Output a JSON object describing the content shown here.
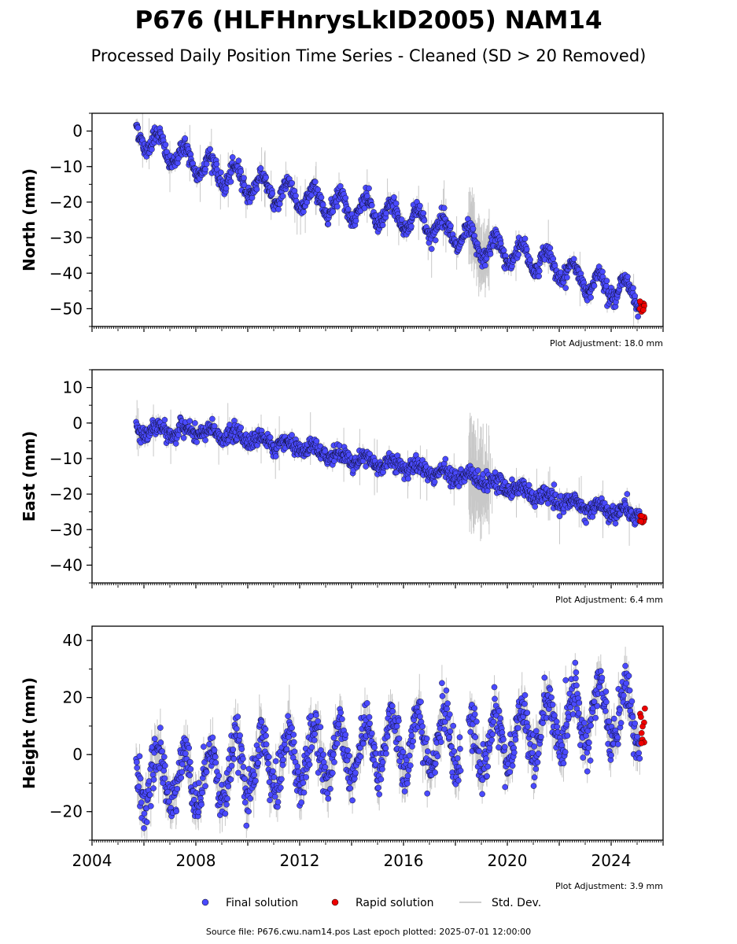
{
  "title": "P676 (HLFHnrysLkID2005) NAM14",
  "subtitle": "Processed Daily Position Time Series - Cleaned (SD > 20 Removed)",
  "footer": "Source file: P676.cwu.nam14.pos  Last epoch plotted: 2025-07-01 12:00:00",
  "legend": [
    {
      "label": "Final solution",
      "color": "#4a4aff"
    },
    {
      "label": "Rapid solution",
      "color": "#ee0000"
    },
    {
      "label": "Std. Dev.",
      "color": "#b0b0b0"
    }
  ],
  "colors": {
    "final": "#4a4aff",
    "rapid": "#ee0000",
    "stddev": "#9a9a9a"
  },
  "chart_data": [
    {
      "type": "scatter",
      "ylabel": "North (mm)",
      "note": "Plot Adjustment: 18.0 mm",
      "xlim": [
        2004,
        2026
      ],
      "ylim": [
        -55,
        5
      ],
      "yticks": [
        0,
        -10,
        -20,
        -30,
        -40,
        -50
      ],
      "ytick_labels": [
        "0",
        "−10",
        "−20",
        "−30",
        "−40",
        "−50"
      ],
      "show_x_labels": false,
      "final_trend": [
        [
          2005.7,
          0
        ],
        [
          2007,
          -6
        ],
        [
          2009,
          -12
        ],
        [
          2011,
          -17
        ],
        [
          2013,
          -20
        ],
        [
          2015,
          -23
        ],
        [
          2017,
          -26
        ],
        [
          2018.3,
          -30
        ],
        [
          2019,
          -33
        ],
        [
          2020,
          -34
        ],
        [
          2021.5,
          -37
        ],
        [
          2023,
          -42
        ],
        [
          2025.1,
          -46
        ]
      ],
      "seasonal_amplitude": 3.5,
      "scatter_sd": 1.2,
      "noisy_period": [
        2018.5,
        2019.3
      ],
      "noisy_sd": 9,
      "rapid_x": [
        2025.1,
        2025.3
      ],
      "rapid_y": [
        -51,
        -47.5
      ]
    },
    {
      "type": "scatter",
      "ylabel": "East (mm)",
      "note": "Plot Adjustment: 6.4 mm",
      "xlim": [
        2004,
        2026
      ],
      "ylim": [
        -45,
        15
      ],
      "yticks": [
        10,
        0,
        -10,
        -20,
        -30,
        -40
      ],
      "ytick_labels": [
        "10",
        "0",
        "−10",
        "−20",
        "−30",
        "−40"
      ],
      "show_x_labels": false,
      "final_trend": [
        [
          2005.7,
          -2
        ],
        [
          2008,
          -2.5
        ],
        [
          2010,
          -4
        ],
        [
          2012,
          -7
        ],
        [
          2014,
          -10
        ],
        [
          2016,
          -12
        ],
        [
          2018.2,
          -15
        ],
        [
          2019,
          -16
        ],
        [
          2020,
          -18
        ],
        [
          2022,
          -22
        ],
        [
          2025.1,
          -26
        ]
      ],
      "seasonal_amplitude": 1.2,
      "scatter_sd": 1.2,
      "noisy_period": [
        2018.5,
        2019.3
      ],
      "noisy_sd": 12,
      "rapid_x": [
        2025.1,
        2025.3
      ],
      "rapid_y": [
        -28,
        -26
      ]
    },
    {
      "type": "scatter",
      "ylabel": "Height (mm)",
      "note": "Plot Adjustment: 3.9 mm",
      "xlim": [
        2004,
        2026
      ],
      "ylim": [
        -30,
        45
      ],
      "yticks": [
        40,
        20,
        0,
        -20
      ],
      "ytick_labels": [
        "40",
        "20",
        "0",
        "−20"
      ],
      "show_x_labels": true,
      "xticks": [
        2004,
        2008,
        2012,
        2016,
        2020,
        2024
      ],
      "xtick_labels": [
        "2004",
        "2008",
        "2012",
        "2016",
        "2020",
        "2024"
      ],
      "final_trend": [
        [
          2005.7,
          -8
        ],
        [
          2008,
          -8
        ],
        [
          2010,
          -5
        ],
        [
          2012,
          -1
        ],
        [
          2014,
          2
        ],
        [
          2016,
          4
        ],
        [
          2018,
          4
        ],
        [
          2020,
          5
        ],
        [
          2022,
          11
        ],
        [
          2023,
          15
        ],
        [
          2025.1,
          13
        ]
      ],
      "seasonal_amplitude": 10,
      "scatter_sd": 4,
      "gap": [
        2018.2,
        2018.5
      ],
      "rapid_x": [
        2025.1,
        2025.3
      ],
      "rapid_y": [
        3,
        17
      ]
    }
  ]
}
